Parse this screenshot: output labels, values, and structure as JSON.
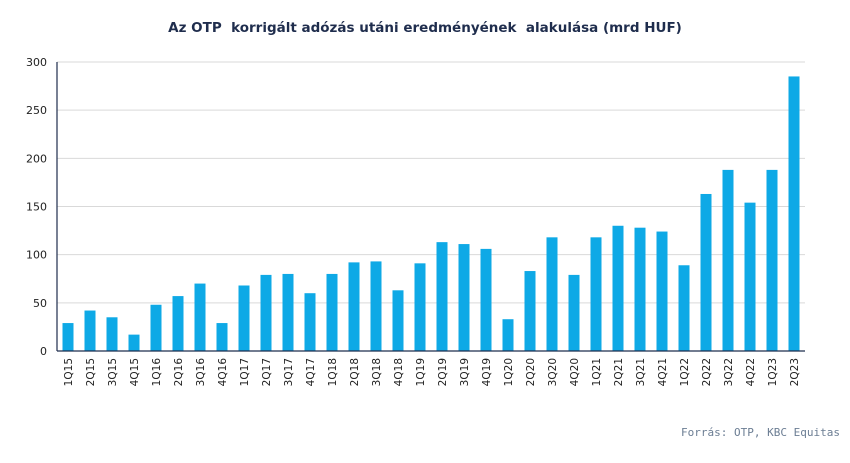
{
  "chart_data": {
    "type": "bar",
    "title": "Az OTP  korrigált adózás utáni eredményének  alakulása (mrd HUF)",
    "xlabel": "",
    "ylabel": "",
    "ylim": [
      0,
      300
    ],
    "yticks": [
      0,
      50,
      100,
      150,
      200,
      250,
      300
    ],
    "grid": true,
    "legend": "none",
    "bar_color": "#0ea9e6",
    "categories": [
      "1Q15",
      "2Q15",
      "3Q15",
      "4Q15",
      "1Q16",
      "2Q16",
      "3Q16",
      "4Q16",
      "1Q17",
      "2Q17",
      "3Q17",
      "4Q17",
      "1Q18",
      "2Q18",
      "3Q18",
      "4Q18",
      "1Q19",
      "2Q19",
      "3Q19",
      "4Q19",
      "1Q20",
      "2Q20",
      "3Q20",
      "4Q20",
      "1Q21",
      "2Q21",
      "3Q21",
      "4Q21",
      "1Q22",
      "2Q22",
      "3Q22",
      "4Q22",
      "1Q23",
      "2Q23"
    ],
    "values": [
      29,
      42,
      35,
      17,
      48,
      57,
      70,
      29,
      68,
      79,
      80,
      60,
      80,
      92,
      93,
      63,
      91,
      113,
      111,
      106,
      33,
      83,
      118,
      79,
      118,
      130,
      128,
      124,
      89,
      163,
      188,
      154,
      188,
      285
    ]
  },
  "source": "Forrás: OTP, KBC Equitas"
}
